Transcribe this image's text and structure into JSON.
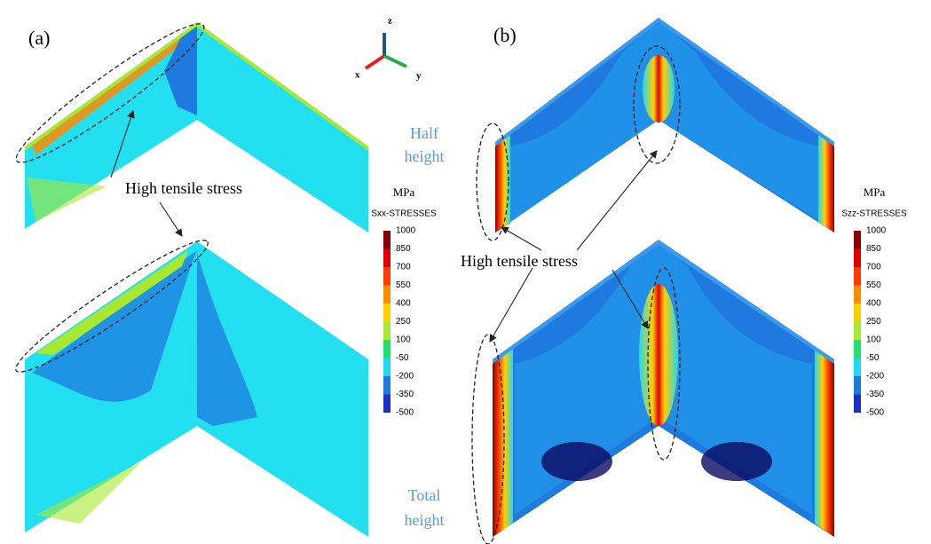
{
  "panels": [
    {
      "label": "(a)",
      "annotation": "High tensile stress",
      "legend": {
        "unit": "MPa",
        "title": "Sxx-STRESSES"
      }
    },
    {
      "label": "(b)",
      "annotation": "High tensile stress",
      "legend": {
        "unit": "MPa",
        "title": "Szz-STRESSES"
      }
    }
  ],
  "legend_levels": [
    1000,
    850,
    700,
    550,
    400,
    250,
    100,
    -50,
    -200,
    -350,
    -500
  ],
  "legend_colors": [
    "#8b0000",
    "#e00000",
    "#ff3a00",
    "#ff8c00",
    "#ffd000",
    "#a8e830",
    "#20e070",
    "#20d8f0",
    "#1f7ae0",
    "#1a30c8",
    "#0a0a60"
  ],
  "side_labels": {
    "half": [
      "Half",
      "height"
    ],
    "total": [
      "Total",
      "height"
    ]
  },
  "triad": {
    "z": "z",
    "x": "x",
    "y": "y"
  }
}
